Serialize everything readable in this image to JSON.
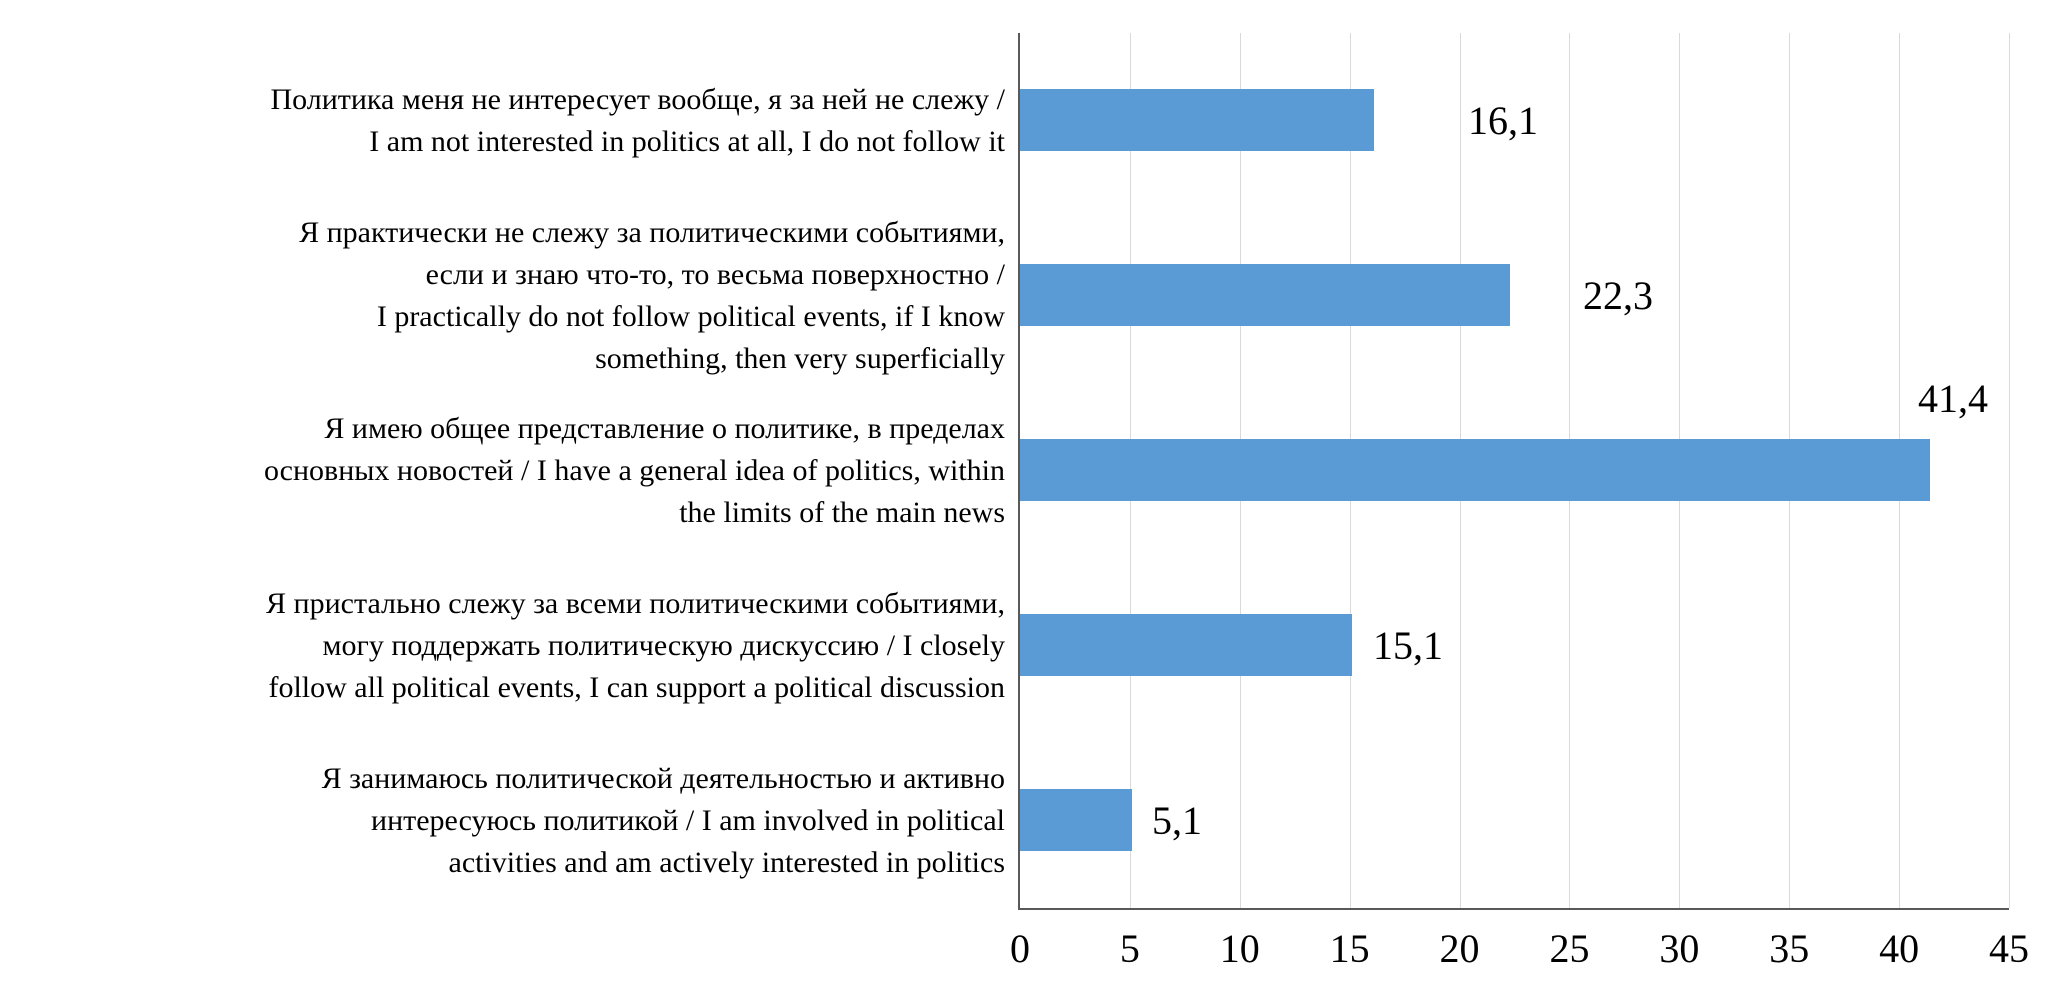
{
  "chart_data": {
    "type": "bar",
    "orientation": "horizontal",
    "title": "",
    "xlabel": "",
    "ylabel": "",
    "xlim": [
      0,
      45
    ],
    "x_ticks": [
      "0",
      "5",
      "10",
      "15",
      "20",
      "25",
      "30",
      "35",
      "40",
      "45"
    ],
    "grid": "vertical",
    "legend": "none",
    "bar_color": "#5b9bd5",
    "gridline_color": "#d9d9d9",
    "axis_color": "#595959",
    "decimal_separator": ",",
    "categories": [
      "Политика меня не интересует вообще, я за ней не слежу /\nI am not interested in politics at all, I do not follow it",
      "Я практически не слежу за политическими событиями,\nесли и знаю что-то, то весьма поверхностно /\nI practically do not follow political events, if I know\nsomething, then very superficially",
      "Я имею общее представление о политике, в пределах\nосновных новостей / I have a general idea of politics, within\nthe limits of the main news",
      "Я пристально слежу за всеми политическими событиями,\nмогу поддержать политическую дискуссию / I closely\nfollow all political events, I can support a political discussion",
      "Я занимаюсь политической деятельностью и активно\nинтересуюсь политикой / I am involved in political\nactivities and am actively interested in politics"
    ],
    "values": [
      16.1,
      22.3,
      41.4,
      15.1,
      5.1
    ],
    "value_labels": [
      "16,1",
      "22,3",
      "41,4",
      "15,1",
      "5,1"
    ]
  }
}
